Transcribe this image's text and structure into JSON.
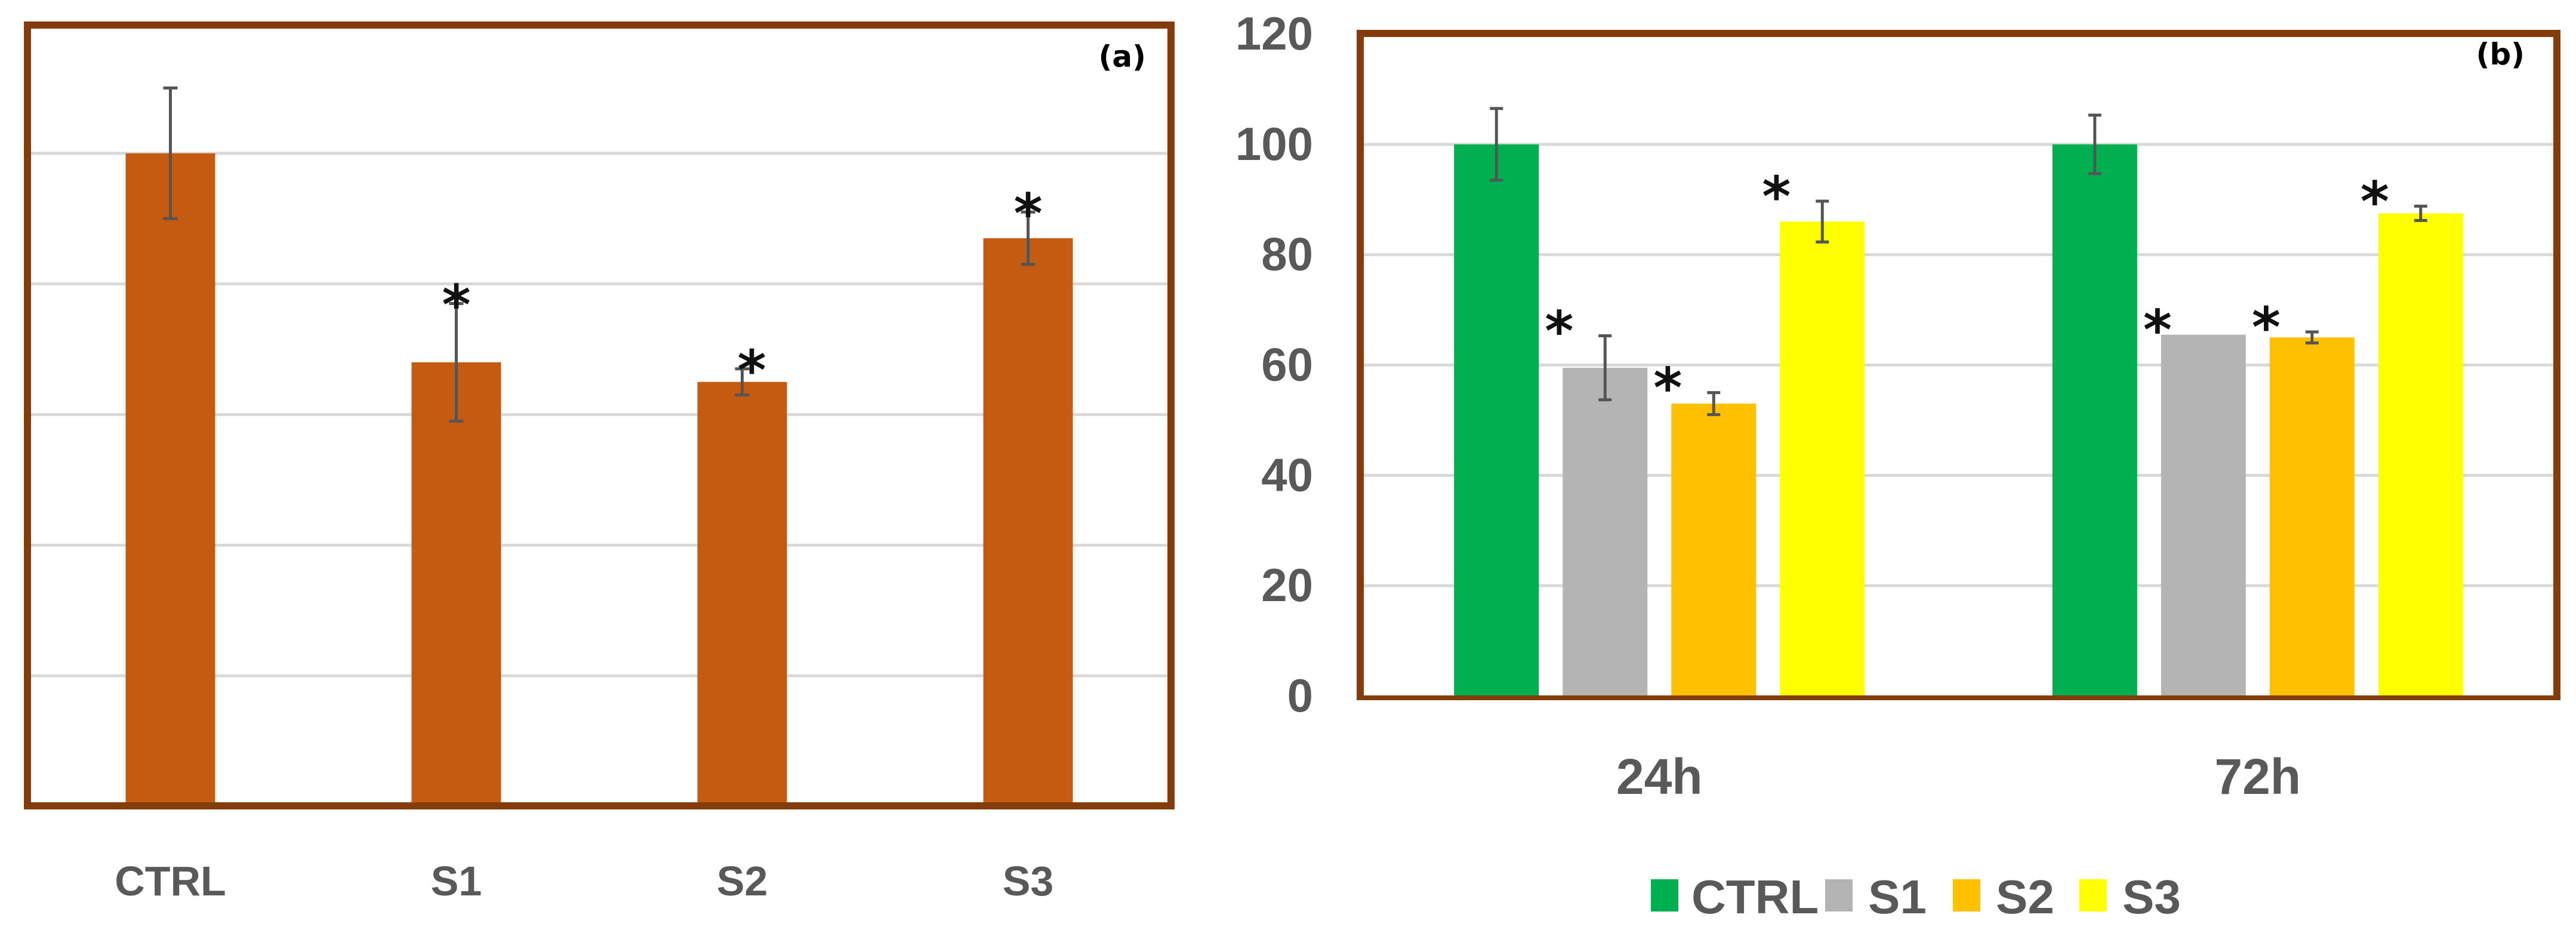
{
  "colors": {
    "frame": "#843C0C",
    "grid": "#D9D9D9",
    "bar_a": "#C55A11",
    "error_bar": "#555555",
    "series": [
      "#00B050",
      "#B4B4B4",
      "#FFC000",
      "#FFFF00"
    ]
  },
  "chart_data": [
    {
      "type": "bar",
      "panel_label": "(a)",
      "categories": [
        "CTRL",
        "S1",
        "S2",
        "S3"
      ],
      "values": [
        100,
        68,
        65,
        87
      ],
      "errors": [
        10,
        9,
        2,
        4
      ],
      "significant": [
        false,
        true,
        true,
        true
      ],
      "ylim": [
        0,
        120
      ],
      "y_tick_labels_shown": false,
      "grid": true
    },
    {
      "type": "bar",
      "panel_label": "(b)",
      "categories": [
        "24h",
        "72h"
      ],
      "series": [
        {
          "name": "CTRL",
          "values": [
            100,
            100
          ],
          "errors": [
            6.5,
            5.3
          ],
          "significant": [
            false,
            false
          ]
        },
        {
          "name": "S1",
          "values": [
            59.5,
            65.5
          ],
          "errors": [
            5.8,
            0
          ],
          "significant": [
            true,
            true
          ]
        },
        {
          "name": "S2",
          "values": [
            53,
            65
          ],
          "errors": [
            2,
            1
          ],
          "significant": [
            true,
            true
          ]
        },
        {
          "name": "S3",
          "values": [
            86,
            87.5
          ],
          "errors": [
            3.7,
            1.3
          ],
          "significant": [
            true,
            true
          ]
        }
      ],
      "ylim": [
        0,
        120
      ],
      "yticks": [
        0,
        20,
        40,
        60,
        80,
        100,
        120
      ],
      "grid": true,
      "legend_position": "bottom"
    }
  ],
  "annotation_symbol": "*"
}
